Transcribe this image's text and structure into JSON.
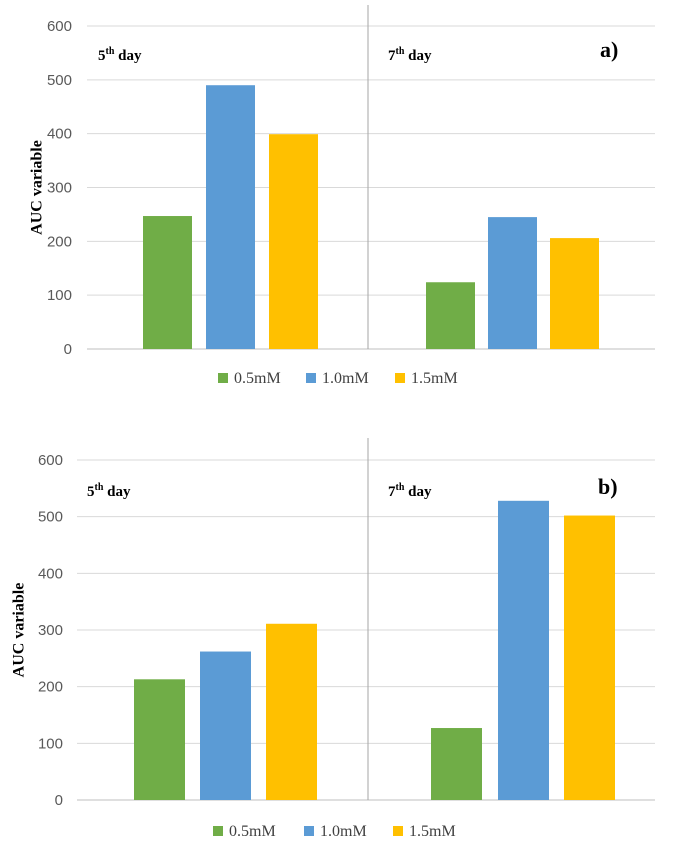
{
  "chart_data": [
    {
      "type": "bar",
      "panel_label": "a)",
      "ylabel": "AUC variable",
      "ylim": [
        0,
        600
      ],
      "yticks": [
        "0",
        "100",
        "200",
        "300",
        "400",
        "500",
        "600"
      ],
      "groups": [
        {
          "label": "5",
          "sup": "th",
          "suffix": " day"
        },
        {
          "label": "7",
          "sup": "th",
          "suffix": " day"
        }
      ],
      "series": [
        {
          "name": "0.5mM",
          "color": "#70AD47",
          "values": [
            247,
            124
          ]
        },
        {
          "name": "1.0mM",
          "color": "#5B9BD5",
          "values": [
            490,
            245
          ]
        },
        {
          "name": "1.5mM",
          "color": "#FFC000",
          "values": [
            399,
            206
          ]
        }
      ],
      "grid": true,
      "legend_position": "bottom"
    },
    {
      "type": "bar",
      "panel_label": "b)",
      "ylabel": "AUC variable",
      "ylim": [
        0,
        600
      ],
      "yticks": [
        "0",
        "100",
        "200",
        "300",
        "400",
        "500",
        "600"
      ],
      "groups": [
        {
          "label": "5",
          "sup": "th",
          "suffix": " day"
        },
        {
          "label": "7",
          "sup": "th",
          "suffix": " day"
        }
      ],
      "series": [
        {
          "name": "0.5mM",
          "color": "#70AD47",
          "values": [
            213,
            127
          ]
        },
        {
          "name": "1.0mM",
          "color": "#5B9BD5",
          "values": [
            262,
            528
          ]
        },
        {
          "name": "1.5mM",
          "color": "#FFC000",
          "values": [
            311,
            502
          ]
        }
      ],
      "grid": true,
      "legend_position": "bottom"
    }
  ]
}
